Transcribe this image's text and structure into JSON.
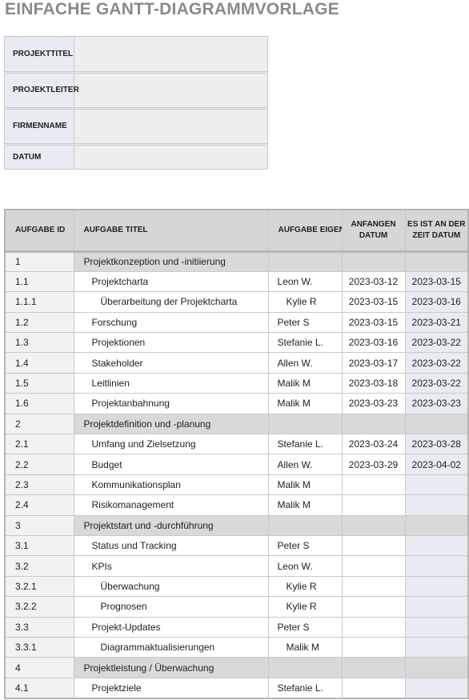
{
  "page_title": "EINFACHE GANTT-DIAGRAMMVORLAGE",
  "project_info": [
    {
      "label": "PROJEKTTITEL",
      "value": ""
    },
    {
      "label": "PROJEKTLEITER",
      "value": ""
    },
    {
      "label": "FIRMENNAME",
      "value": ""
    },
    {
      "label": "DATUM",
      "value": ""
    }
  ],
  "table": {
    "headers": {
      "task_id": "AUFGABE ID",
      "task_title": "AUFGABE TITEL",
      "task_owner": "AUFGABE EIGENTÜMER",
      "start_date": "ANFANGEN DATUM",
      "end_date": "ES IST AN DER ZEIT DATUM"
    },
    "rows": [
      {
        "id": "1",
        "title": "Projektkonzeption und -initiierung",
        "owner": "",
        "start": "",
        "end": ""
      },
      {
        "id": "1.1",
        "title": "Projektcharta",
        "owner": "Leon W.",
        "start": "2023-03-12",
        "end": "2023-03-15"
      },
      {
        "id": "1.1.1",
        "title": "Überarbeitung der Projektcharta",
        "owner": "Kylie R",
        "start": "2023-03-15",
        "end": "2023-03-16"
      },
      {
        "id": "1.2",
        "title": "Forschung",
        "owner": "Peter S",
        "start": "2023-03-15",
        "end": "2023-03-21"
      },
      {
        "id": "1.3",
        "title": "Projektionen",
        "owner": "Stefanie L.",
        "start": "2023-03-16",
        "end": "2023-03-22"
      },
      {
        "id": "1.4",
        "title": "Stakeholder",
        "owner": "Allen W.",
        "start": "2023-03-17",
        "end": "2023-03-22"
      },
      {
        "id": "1.5",
        "title": "Leitlinien",
        "owner": "Malik M",
        "start": "2023-03-18",
        "end": "2023-03-22"
      },
      {
        "id": "1.6",
        "title": "Projektanbahnung",
        "owner": "Malik M",
        "start": "2023-03-23",
        "end": "2023-03-23"
      },
      {
        "id": "2",
        "title": "Projektdefinition und -planung",
        "owner": "",
        "start": "",
        "end": ""
      },
      {
        "id": "2.1",
        "title": "Umfang und Zielsetzung",
        "owner": "Stefanie L.",
        "start": "2023-03-24",
        "end": "2023-03-28"
      },
      {
        "id": "2.2",
        "title": "Budget",
        "owner": "Allen W.",
        "start": "2023-03-29",
        "end": "2023-04-02"
      },
      {
        "id": "2.3",
        "title": "Kommunikationsplan",
        "owner": "Malik M",
        "start": "",
        "end": ""
      },
      {
        "id": "2.4",
        "title": "Risikomanagement",
        "owner": "Malik M",
        "start": "",
        "end": ""
      },
      {
        "id": "3",
        "title": "Projektstart und -durchführung",
        "owner": "",
        "start": "",
        "end": ""
      },
      {
        "id": "3.1",
        "title": "Status und Tracking",
        "owner": "Peter S",
        "start": "",
        "end": ""
      },
      {
        "id": "3.2",
        "title": "KPIs",
        "owner": "Leon W.",
        "start": "",
        "end": ""
      },
      {
        "id": "3.2.1",
        "title": "Überwachung",
        "owner": "Kylie R",
        "start": "",
        "end": ""
      },
      {
        "id": "3.2.2",
        "title": "Prognosen",
        "owner": "Kylie R",
        "start": "",
        "end": ""
      },
      {
        "id": "3.3",
        "title": "Projekt-Updates",
        "owner": "Peter S",
        "start": "",
        "end": ""
      },
      {
        "id": "3.3.1",
        "title": "Diagrammaktualisierungen",
        "owner": "Malik M",
        "start": "",
        "end": ""
      },
      {
        "id": "4",
        "title": "Projektleistung / Überwachung",
        "owner": "",
        "start": "",
        "end": ""
      },
      {
        "id": "4.1",
        "title": "Projektziele",
        "owner": "Stefanie L.",
        "start": "",
        "end": ""
      }
    ]
  }
}
